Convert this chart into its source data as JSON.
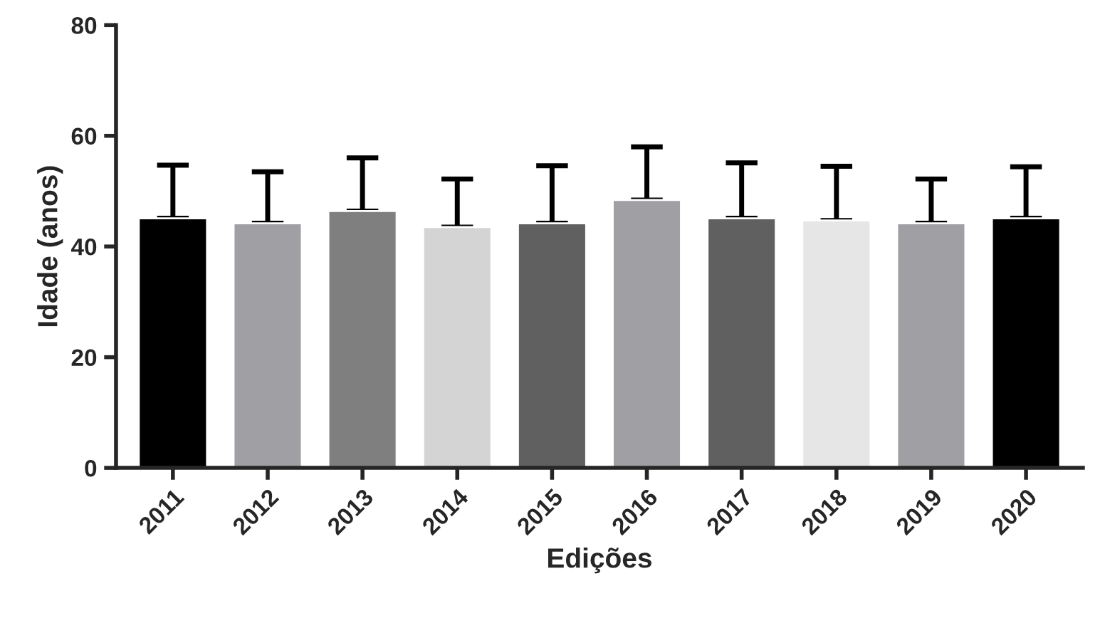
{
  "chart_data": {
    "type": "bar",
    "xlabel": "Edições",
    "ylabel": "Idade (anos)",
    "categories": [
      "2011",
      "2012",
      "2013",
      "2014",
      "2015",
      "2016",
      "2017",
      "2018",
      "2019",
      "2020"
    ],
    "values": [
      45.1,
      44.2,
      46.4,
      43.5,
      44.2,
      48.4,
      45.1,
      44.7,
      44.2,
      45.1
    ],
    "errors": [
      [
        45.1,
        54.7
      ],
      [
        44.2,
        53.5
      ],
      [
        46.4,
        56.0
      ],
      [
        43.5,
        52.2
      ],
      [
        44.2,
        54.6
      ],
      [
        48.4,
        58.0
      ],
      [
        45.1,
        55.1
      ],
      [
        44.7,
        54.5
      ],
      [
        44.2,
        52.2
      ],
      [
        45.1,
        54.4
      ]
    ],
    "colors": [
      "#000000",
      "#a0a0a4",
      "#7f7f7f",
      "#d4d4d4",
      "#606060",
      "#a0a0a4",
      "#606060",
      "#e6e6e6",
      "#a0a0a4",
      "#000000"
    ],
    "ylim": [
      0,
      80
    ],
    "yticks": [
      0,
      20,
      40,
      60,
      80
    ],
    "grid": false,
    "legend": false
  }
}
